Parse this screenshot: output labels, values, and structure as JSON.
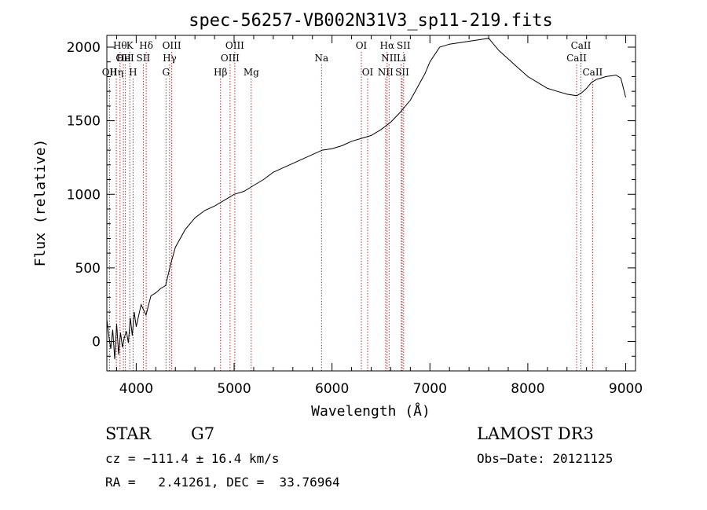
{
  "chart_data": {
    "type": "line",
    "title": "spec-56257-VB002N31V3_sp11-219.fits",
    "xlabel": "Wavelength (Å)",
    "ylabel": "Flux (relative)",
    "xlim": [
      3700,
      9100
    ],
    "ylim": [
      -200,
      2080
    ],
    "x_ticks": [
      4000,
      5000,
      6000,
      7000,
      8000,
      9000
    ],
    "x_tick_labels": [
      "4000",
      "5000",
      "6000",
      "7000",
      "8000",
      "9000"
    ],
    "y_ticks": [
      0,
      500,
      1000,
      1500,
      2000
    ],
    "y_tick_labels": [
      "0",
      "500",
      "1000",
      "1500",
      "2000"
    ],
    "grid": false,
    "line_color": "#000000",
    "marker_line_color": "#b03030",
    "series": [
      {
        "name": "flux",
        "x": [
          3700,
          3720,
          3740,
          3760,
          3780,
          3800,
          3820,
          3840,
          3860,
          3880,
          3900,
          3920,
          3940,
          3960,
          3980,
          4000,
          4050,
          4100,
          4150,
          4200,
          4250,
          4300,
          4350,
          4400,
          4500,
          4600,
          4700,
          4800,
          4900,
          5000,
          5100,
          5200,
          5300,
          5400,
          5500,
          5600,
          5700,
          5800,
          5900,
          6000,
          6100,
          6200,
          6300,
          6400,
          6500,
          6600,
          6700,
          6750,
          6800,
          6850,
          6900,
          6950,
          7000,
          7050,
          7100,
          7200,
          7300,
          7400,
          7500,
          7600,
          7650,
          7700,
          7800,
          7900,
          8000,
          8100,
          8200,
          8300,
          8400,
          8500,
          8550,
          8600,
          8650,
          8700,
          8800,
          8900,
          8950,
          9000
        ],
        "y": [
          150,
          40,
          -50,
          80,
          -120,
          120,
          -90,
          60,
          -40,
          30,
          70,
          -10,
          160,
          40,
          200,
          100,
          250,
          180,
          310,
          330,
          360,
          380,
          520,
          640,
          760,
          840,
          890,
          920,
          960,
          1000,
          1020,
          1060,
          1100,
          1150,
          1180,
          1210,
          1240,
          1270,
          1300,
          1310,
          1330,
          1360,
          1380,
          1400,
          1440,
          1490,
          1560,
          1600,
          1640,
          1700,
          1760,
          1820,
          1900,
          1950,
          2000,
          2020,
          2030,
          2040,
          2050,
          2060,
          2020,
          1980,
          1920,
          1860,
          1800,
          1760,
          1720,
          1700,
          1680,
          1670,
          1690,
          1720,
          1760,
          1780,
          1800,
          1810,
          1790,
          1660
        ]
      }
    ],
    "line_markers": [
      {
        "wavelength": 3835,
        "label": "Hθ",
        "row": 1
      },
      {
        "wavelength": 3934,
        "label": "K",
        "row": 1
      },
      {
        "wavelength": 4102,
        "label": "Hδ",
        "row": 1
      },
      {
        "wavelength": 4363,
        "label": "OIII",
        "row": 1
      },
      {
        "wavelength": 5007,
        "label": "OIII",
        "row": 1
      },
      {
        "wavelength": 6300,
        "label": "OI",
        "row": 1
      },
      {
        "wavelength": 6563,
        "label": "Hα",
        "row": 1
      },
      {
        "wavelength": 6731,
        "label": "SII",
        "row": 1
      },
      {
        "wavelength": 8542,
        "label": "CaII",
        "row": 1
      },
      {
        "wavelength": 3869,
        "label": "OII",
        "row": 2
      },
      {
        "wavelength": 3889,
        "label": "HeI",
        "row": 2
      },
      {
        "wavelength": 4072,
        "label": "SII",
        "row": 2
      },
      {
        "wavelength": 4341,
        "label": "Hγ",
        "row": 2
      },
      {
        "wavelength": 4959,
        "label": "OIII",
        "row": 2
      },
      {
        "wavelength": 5893,
        "label": "Na",
        "row": 2
      },
      {
        "wavelength": 6583,
        "label": "NII",
        "row": 2
      },
      {
        "wavelength": 6708,
        "label": "Li",
        "row": 2
      },
      {
        "wavelength": 8498,
        "label": "CaII",
        "row": 2
      },
      {
        "wavelength": 3727,
        "label": "OII",
        "row": 3
      },
      {
        "wavelength": 3797,
        "label": "Hη",
        "row": 3
      },
      {
        "wavelength": 3968,
        "label": "H",
        "row": 3
      },
      {
        "wavelength": 4304,
        "label": "G",
        "row": 3
      },
      {
        "wavelength": 4861,
        "label": "Hβ",
        "row": 3
      },
      {
        "wavelength": 5175,
        "label": "Mg",
        "row": 3
      },
      {
        "wavelength": 6364,
        "label": "OI",
        "row": 3
      },
      {
        "wavelength": 6548,
        "label": "NII",
        "row": 3
      },
      {
        "wavelength": 6717,
        "label": "SII",
        "row": 3
      },
      {
        "wavelength": 8662,
        "label": "CaII",
        "row": 3
      }
    ]
  },
  "info": {
    "object_class": "STAR",
    "subclass": "G7",
    "survey": "LAMOST DR3",
    "velocity": "cz = −111.4 ± 16.4 km/s",
    "obs_date": "Obs−Date: 20121125",
    "coords": "RA =   2.41261, DEC =  33.76964"
  }
}
